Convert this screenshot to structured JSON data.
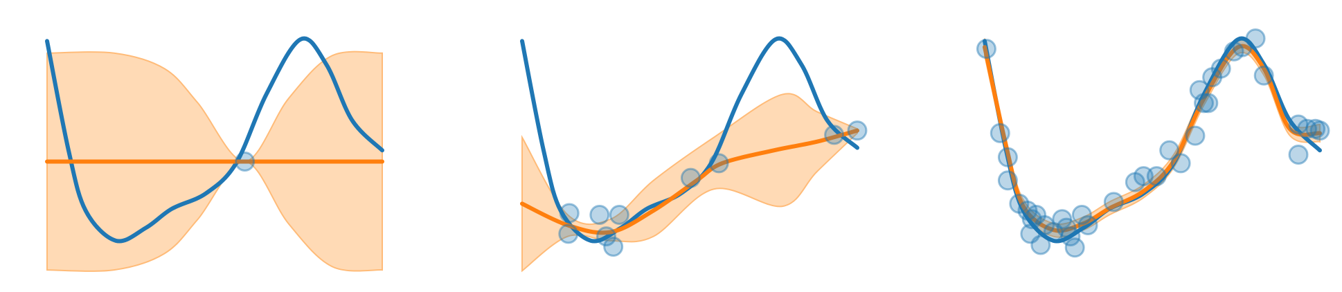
{
  "chart_data": [
    {
      "type": "line",
      "xlim": [
        0,
        1
      ],
      "ylim": [
        -3,
        3
      ],
      "x": [
        0,
        0.064,
        0.115,
        0.205,
        0.295,
        0.372,
        0.474,
        0.564,
        0.654,
        0.756,
        0.833,
        0.91,
        1
      ],
      "series": [
        {
          "color": "#1f77b4",
          "values": [
            2.64,
            0.1,
            -1.3,
            -2.0,
            -1.7,
            -1.26,
            -0.9,
            -0.2,
            1.4,
            2.68,
            2.1,
            0.8,
            0.1
          ]
        }
      ],
      "mean": {
        "color": "#ff7f0e",
        "x": [
          0,
          0.5,
          1
        ],
        "values": [
          -0.16,
          -0.16,
          -0.16
        ]
      },
      "band": {
        "color": "#ffbb78",
        "x": [
          0,
          0.2,
          0.35,
          0.45,
          0.59,
          0.72,
          0.85,
          1
        ],
        "upper": [
          2.36,
          2.36,
          2.0,
          1.2,
          -0.16,
          1.3,
          2.3,
          2.36
        ],
        "lower": [
          -2.68,
          -2.68,
          -2.3,
          -1.5,
          -0.16,
          -1.6,
          -2.6,
          -2.68
        ]
      },
      "points": {
        "color": "#1f77b4",
        "x": [
          0.59
        ],
        "y": [
          -0.16
        ]
      }
    },
    {
      "type": "line",
      "xlim": [
        0,
        1
      ],
      "ylim": [
        -3,
        3
      ],
      "x": [
        0,
        0.064,
        0.115,
        0.205,
        0.295,
        0.372,
        0.474,
        0.564,
        0.654,
        0.756,
        0.833,
        0.91,
        1
      ],
      "series": [
        {
          "color": "#1f77b4",
          "values": [
            2.64,
            0.1,
            -1.3,
            -2.0,
            -1.7,
            -1.26,
            -0.9,
            -0.2,
            1.4,
            2.68,
            2.1,
            0.8,
            0.16
          ]
        }
      ],
      "mean": {
        "color": "#ff7f0e",
        "x": [
          0,
          0.136,
          0.264,
          0.392,
          0.521,
          0.597,
          0.751,
          0.879,
          1
        ],
        "values": [
          -1.14,
          -1.64,
          -1.8,
          -1.3,
          -0.6,
          -0.2,
          0.1,
          0.3,
          0.56
        ]
      },
      "band": {
        "color": "#ffbb78",
        "x": [
          0,
          0.136,
          0.264,
          0.392,
          0.572,
          0.777,
          0.879,
          1
        ],
        "upper": [
          0.4,
          -1.4,
          -1.5,
          -0.6,
          0.4,
          1.4,
          1.0,
          0.6
        ],
        "lower": [
          -2.7,
          -1.9,
          -2.0,
          -1.9,
          -0.8,
          -1.2,
          -0.4,
          0.5
        ]
      },
      "points": {
        "color": "#1f77b4",
        "x": [
          0.141,
          0.138,
          0.231,
          0.29,
          0.251,
          0.272,
          0.503,
          0.587,
          0.931,
          1
        ],
        "y": [
          -1.36,
          -1.84,
          -1.4,
          -1.4,
          -1.9,
          -2.14,
          -0.54,
          -0.2,
          0.46,
          0.56
        ]
      }
    },
    {
      "type": "line",
      "xlim": [
        0,
        1
      ],
      "ylim": [
        -3,
        3
      ],
      "x": [
        0,
        0.064,
        0.115,
        0.205,
        0.295,
        0.372,
        0.474,
        0.564,
        0.654,
        0.756,
        0.833,
        0.91,
        1
      ],
      "series": [
        {
          "color": "#1f77b4",
          "values": [
            2.64,
            0.1,
            -1.3,
            -2.0,
            -1.7,
            -1.26,
            -0.9,
            -0.2,
            1.4,
            2.68,
            2.1,
            0.8,
            0.1
          ]
        }
      ],
      "mean": {
        "color": "#ff7f0e",
        "x": [
          0,
          0.064,
          0.115,
          0.205,
          0.295,
          0.372,
          0.474,
          0.564,
          0.654,
          0.756,
          0.833,
          0.91,
          1
        ],
        "values": [
          2.5,
          0.2,
          -1.2,
          -1.75,
          -1.6,
          -1.25,
          -0.85,
          -0.15,
          1.3,
          2.5,
          2.0,
          0.6,
          0.5
        ]
      },
      "band": {
        "color": "#ffbb78",
        "x": [
          0,
          0.064,
          0.115,
          0.205,
          0.295,
          0.372,
          0.474,
          0.564,
          0.654,
          0.756,
          0.833,
          0.91,
          1
        ],
        "upper": [
          2.7,
          0.35,
          -1.05,
          -1.6,
          -1.45,
          -1.1,
          -0.7,
          0.0,
          1.45,
          2.65,
          2.15,
          0.75,
          0.7
        ],
        "lower": [
          2.3,
          0.05,
          -1.35,
          -1.9,
          -1.75,
          -1.4,
          -1.0,
          -0.3,
          1.15,
          2.35,
          1.85,
          0.45,
          0.3
        ]
      },
      "points": {
        "color": "#1f77b4",
        "x": [
          0.005,
          0.046,
          0.069,
          0.069,
          0.103,
          0.128,
          0.141,
          0.154,
          0.136,
          0.179,
          0.167,
          0.205,
          0.231,
          0.244,
          0.256,
          0.269,
          0.29,
          0.308,
          0.385,
          0.449,
          0.474,
          0.513,
          0.551,
          0.585,
          0.628,
          0.641,
          0.654,
          0.679,
          0.667,
          0.705,
          0.744,
          0.769,
          0.808,
          0.833,
          0.936,
          0.962,
          0.987,
          0.936,
          1
        ],
        "y": [
          2.46,
          0.5,
          -0.06,
          -0.6,
          -1.14,
          -1.3,
          -1.5,
          -1.4,
          -1.84,
          -1.64,
          -2.1,
          -1.8,
          -1.5,
          -1.7,
          -1.9,
          -2.16,
          -1.4,
          -1.64,
          -1.1,
          -0.64,
          -0.5,
          -0.5,
          0.1,
          -0.2,
          0.44,
          1.5,
          1.2,
          1.8,
          1.2,
          2.0,
          2.4,
          2.5,
          2.7,
          1.84,
          0.7,
          0.6,
          0.6,
          0.0,
          0.56
        ]
      }
    }
  ]
}
